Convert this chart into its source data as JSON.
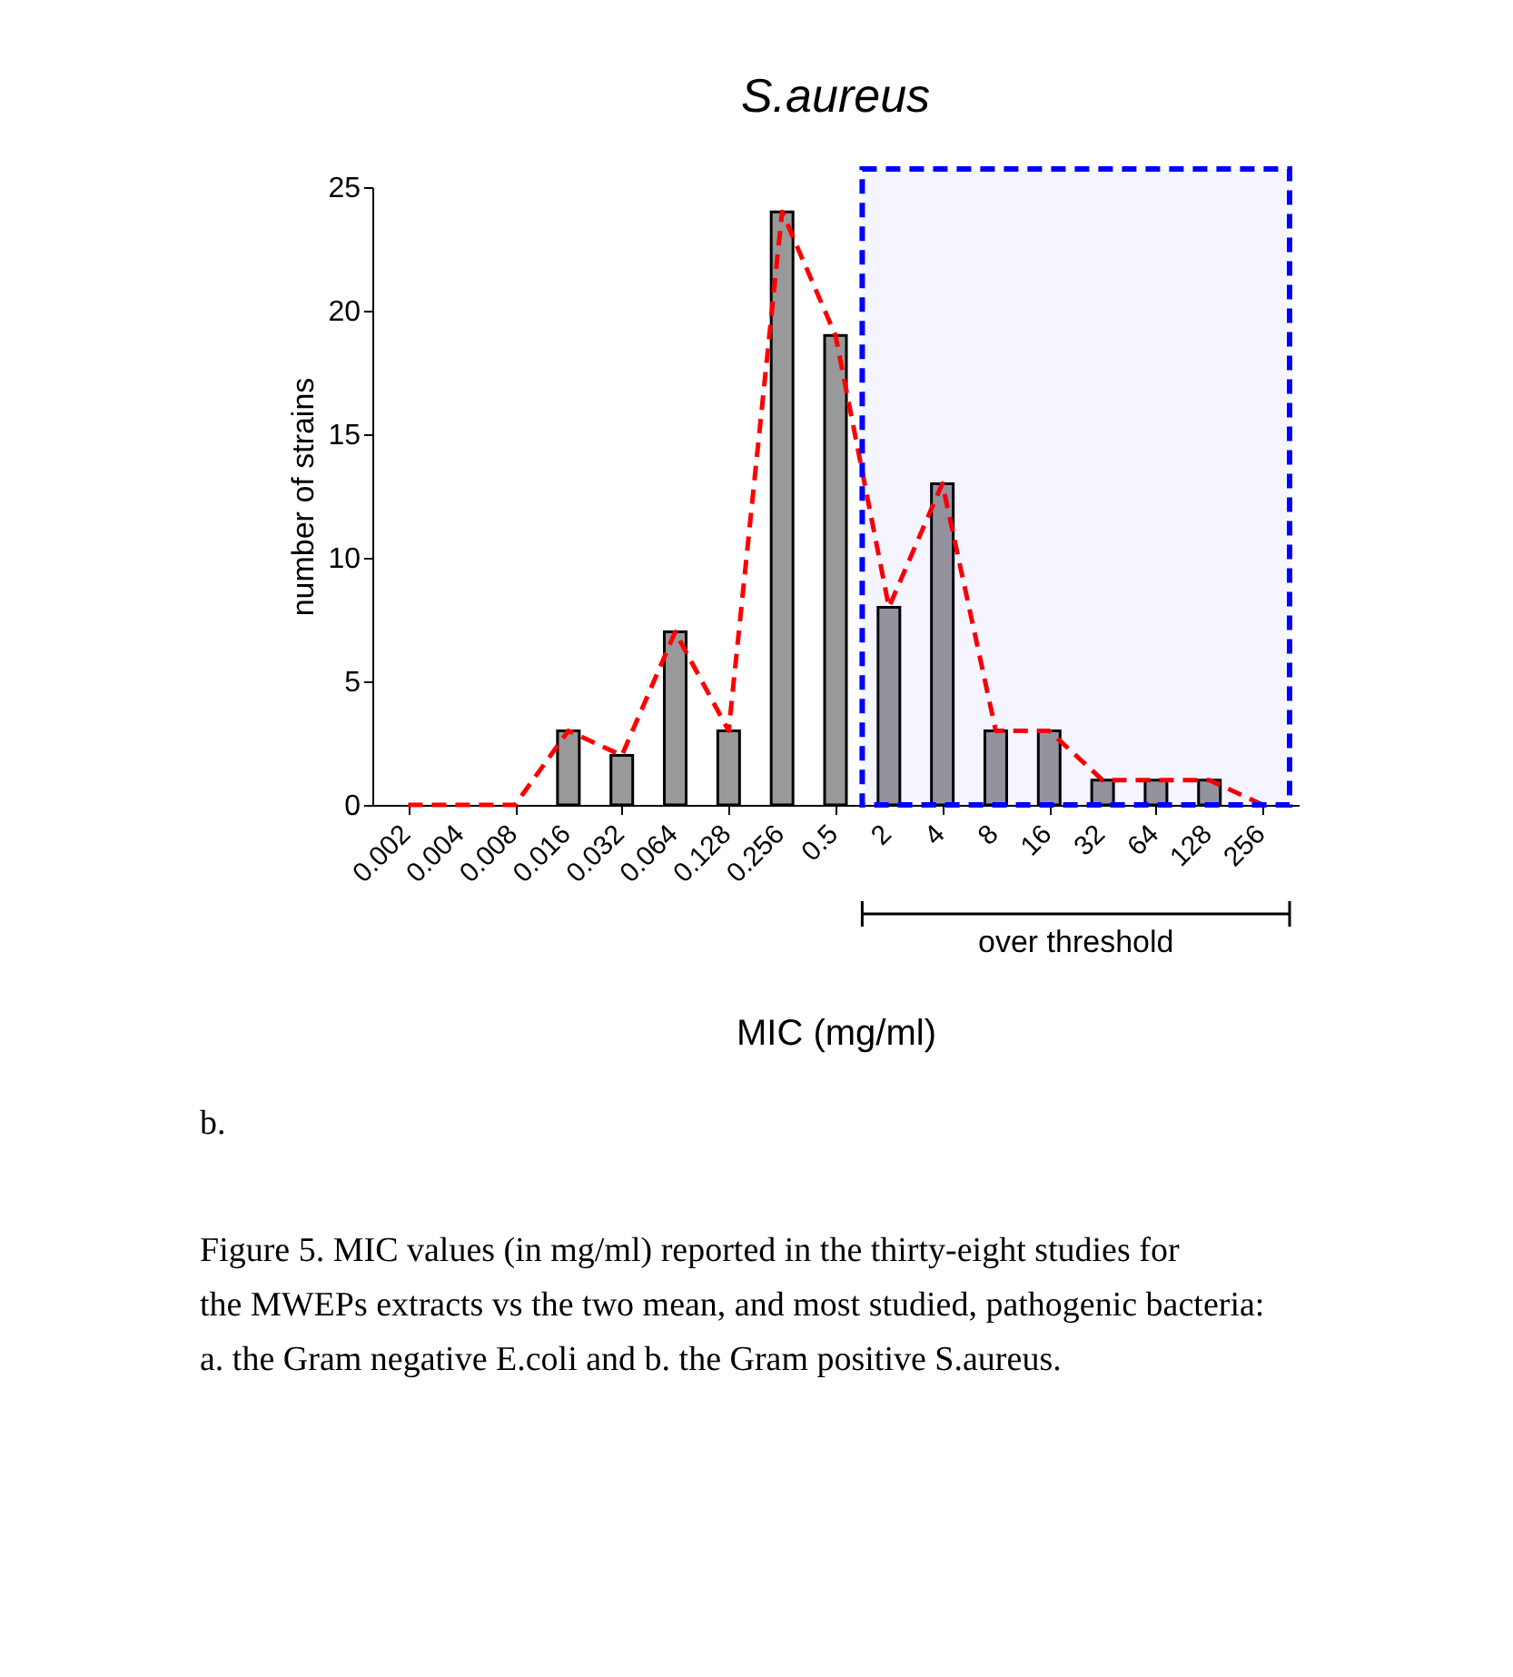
{
  "chart_data": {
    "type": "bar",
    "title": "S.aureus",
    "xlabel": "MIC (mg/ml)",
    "ylabel": "number of strains",
    "categories": [
      "0.002",
      "0.004",
      "0.008",
      "0.016",
      "0.032",
      "0.064",
      "0.128",
      "0.256",
      "0.5",
      "2",
      "4",
      "8",
      "16",
      "32",
      "64",
      "128",
      "256"
    ],
    "series": [
      {
        "color": "#999999",
        "values": [
          0,
          0,
          0,
          3,
          2,
          7,
          3,
          24,
          19,
          8,
          13,
          3,
          3,
          1,
          1,
          1,
          0
        ]
      },
      {
        "type": "line",
        "color": "#ff0000",
        "line_style": "dashed",
        "values": [
          0,
          0,
          0,
          3,
          2,
          7,
          3,
          24,
          19,
          8,
          13,
          3,
          3,
          1,
          1,
          1,
          0
        ]
      }
    ],
    "ylim": [
      0,
      25
    ],
    "yticks": [
      0,
      5,
      10,
      15,
      20,
      25
    ],
    "marker": "none",
    "bands": [
      {
        "axis": "x",
        "from": "2",
        "to": "256",
        "color": "#0000ff"
      }
    ],
    "annotations": [
      "over threshold",
      "b.",
      "Figure 5. MIC values (in mg/ml) reported in the thirty-eight studies for the MWEPs extracts vs the two mean, and most studied, pathogenic bacteria: a. the Gram negative E.coli and b. the Gram positive S.aureus."
    ]
  }
}
